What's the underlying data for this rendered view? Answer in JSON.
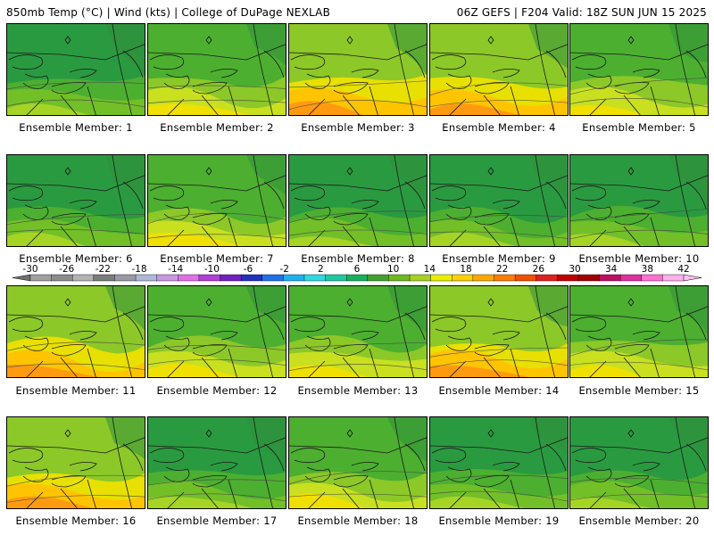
{
  "header": {
    "title_left": "850mb Temp (°C) | Wind (kts) | College of DuPage NEXLAB",
    "title_right": "06Z GEFS | F204 Valid: 18Z SUN JUN 15 2025"
  },
  "colorbar": {
    "labels": [
      "-30",
      "-26",
      "-22",
      "-18",
      "-14",
      "-10",
      "-6",
      "-2",
      "2",
      "6",
      "10",
      "14",
      "18",
      "22",
      "26",
      "30",
      "34",
      "38",
      "42"
    ],
    "colors": [
      "#a0a0a0",
      "#8c8c8c",
      "#b4b4b4",
      "#7c7c7c",
      "#9a9aa6",
      "#b0b8d8",
      "#c898e0",
      "#e070e8",
      "#b040d8",
      "#7020c0",
      "#2030c0",
      "#2070e8",
      "#20b0f0",
      "#30d8e0",
      "#20c8a0",
      "#18b060",
      "#40a030",
      "#70b820",
      "#a8d020",
      "#e8f000",
      "#ffd000",
      "#ffa800",
      "#ff7c00",
      "#f05000",
      "#e02020",
      "#c00000",
      "#a00000",
      "#c01060",
      "#e030a0",
      "#ff70d0",
      "#ffb0e8"
    ],
    "min_color": "#707070",
    "max_color": "#ffc0f0"
  },
  "members": [
    {
      "label": "Ensemble Member: 1",
      "theme": "cool"
    },
    {
      "label": "Ensemble Member: 2",
      "theme": "mild"
    },
    {
      "label": "Ensemble Member: 3",
      "theme": "warm"
    },
    {
      "label": "Ensemble Member: 4",
      "theme": "warm"
    },
    {
      "label": "Ensemble Member: 5",
      "theme": "mild"
    },
    {
      "label": "Ensemble Member: 6",
      "theme": "cool"
    },
    {
      "label": "Ensemble Member: 7",
      "theme": "mild"
    },
    {
      "label": "Ensemble Member: 8",
      "theme": "cool"
    },
    {
      "label": "Ensemble Member: 9",
      "theme": "cool"
    },
    {
      "label": "Ensemble Member: 10",
      "theme": "cool"
    },
    {
      "label": "Ensemble Member: 11",
      "theme": "warm"
    },
    {
      "label": "Ensemble Member: 12",
      "theme": "mild"
    },
    {
      "label": "Ensemble Member: 13",
      "theme": "mild"
    },
    {
      "label": "Ensemble Member: 14",
      "theme": "warm"
    },
    {
      "label": "Ensemble Member: 15",
      "theme": "mild"
    },
    {
      "label": "Ensemble Member: 16",
      "theme": "warm"
    },
    {
      "label": "Ensemble Member: 17",
      "theme": "cool"
    },
    {
      "label": "Ensemble Member: 18",
      "theme": "mild"
    },
    {
      "label": "Ensemble Member: 19",
      "theme": "cool"
    },
    {
      "label": "Ensemble Member: 20",
      "theme": "cool"
    }
  ],
  "themes": {
    "cool": [
      "#2a9a40",
      "#4caf30",
      "#72bf28",
      "#a6d424"
    ],
    "mild": [
      "#4caf30",
      "#8cc828",
      "#c8e020",
      "#f0e000"
    ],
    "warm": [
      "#8cc828",
      "#e8e000",
      "#ffc400",
      "#ff9a10"
    ]
  }
}
